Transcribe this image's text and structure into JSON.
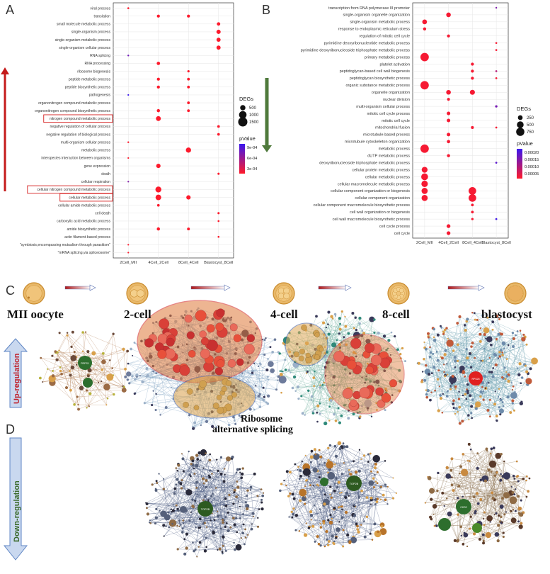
{
  "panels": {
    "A": "A",
    "B": "B",
    "C": "C",
    "D": "D"
  },
  "chart_data": [
    {
      "type": "scatter",
      "id": "A",
      "categories": [
        "2Cell_MII",
        "4Cell_2Cell",
        "8Cell_4Cell",
        "Blastocyst_8Cell"
      ],
      "terms": [
        "viral process",
        "translation",
        "small molecule metabolic process",
        "single-organism process",
        "single-organism metabolic process",
        "single-organism cellular process",
        "RNA splicing",
        "RNA processing",
        "ribosome biogenesis",
        "peptide metabolic process",
        "peptide biosynthetic process",
        "pathogenesis",
        "organonitrogen compound metabolic process",
        "organonitrogen compound biosynthetic process",
        "nitrogen compound metabolic process",
        "negative regulation of cellular process",
        "negative regulation of biological process",
        "multi-organism cellular process",
        "metabolic process",
        "interspecies interaction between organisms",
        "gene expression",
        "death",
        "cellular respiration",
        "cellular nitrogen compound metabolic process",
        "cellular metabolic process",
        "cellular amide metabolic process",
        "cell death",
        "carboxylic acid metabolic process",
        "amide biosynthetic process",
        "actin filament-based process",
        "\"symbiosis,encompassing mutualism through parasitism\"",
        "\"mRNA splicing,via spliceosome\""
      ],
      "boxed_terms": [
        "nitrogen compound metabolic process",
        "cellular nitrogen compound metabolic process",
        "cellular metabolic process"
      ],
      "points": [
        [
          0,
          0,
          60,
          1e-05
        ],
        [
          1,
          1,
          160,
          1e-05
        ],
        [
          1,
          2,
          160,
          1e-05
        ],
        [
          2,
          3,
          210,
          1e-05
        ],
        [
          3,
          3,
          320,
          1e-05
        ],
        [
          4,
          3,
          300,
          1e-05
        ],
        [
          5,
          3,
          300,
          1e-05
        ],
        [
          6,
          0,
          50,
          0.0008
        ],
        [
          7,
          1,
          200,
          1e-05
        ],
        [
          8,
          2,
          90,
          1e-05
        ],
        [
          9,
          1,
          160,
          1e-05
        ],
        [
          9,
          2,
          130,
          1e-05
        ],
        [
          10,
          1,
          160,
          1e-05
        ],
        [
          10,
          2,
          130,
          1e-05
        ],
        [
          11,
          0,
          40,
          0.0011
        ],
        [
          12,
          2,
          130,
          1e-05
        ],
        [
          13,
          1,
          180,
          1e-05
        ],
        [
          13,
          2,
          130,
          1e-05
        ],
        [
          14,
          1,
          420,
          1e-05
        ],
        [
          15,
          3,
          120,
          1e-05
        ],
        [
          16,
          3,
          120,
          1e-05
        ],
        [
          17,
          0,
          50,
          1e-05
        ],
        [
          18,
          2,
          480,
          1e-05
        ],
        [
          19,
          0,
          40,
          1e-05
        ],
        [
          20,
          1,
          330,
          1e-05
        ],
        [
          21,
          3,
          80,
          1e-05
        ],
        [
          22,
          0,
          40,
          0.0007
        ],
        [
          23,
          1,
          620,
          1e-05
        ],
        [
          24,
          1,
          560,
          1e-05
        ],
        [
          24,
          2,
          330,
          1e-05
        ],
        [
          25,
          1,
          120,
          1e-05
        ],
        [
          26,
          3,
          80,
          1e-05
        ],
        [
          27,
          3,
          60,
          1e-05
        ],
        [
          28,
          1,
          180,
          1e-05
        ],
        [
          28,
          2,
          140,
          1e-05
        ],
        [
          29,
          3,
          60,
          1e-05
        ],
        [
          30,
          0,
          40,
          1e-05
        ],
        [
          31,
          0,
          40,
          1e-05
        ]
      ],
      "legend": {
        "size_title": "DEGs",
        "sizes": [
          500,
          1000,
          1500
        ],
        "size_labels": [
          "500",
          "1000",
          "1500"
        ],
        "color_title": "pValue",
        "color_ticks": [
          "9e-04",
          "6e-04",
          "3e-04"
        ],
        "color_max": 0.0011,
        "color_min": 0.0,
        "color_low": "#ff1a2a",
        "color_high": "#3a18f0"
      },
      "arrow_color": "#c41a1a"
    },
    {
      "type": "scatter",
      "id": "B",
      "categories": [
        "2Cell_MII",
        "4Cell_2Cell",
        "8Cell_4Cell",
        "Blastocyst_8Cell"
      ],
      "terms": [
        "transcription from RNA polymerase III promoter",
        "single-organism organelle organization",
        "single-organism metabolic process",
        "response to endoplasmic reticulum stress",
        "regulation of mitotic cell cycle",
        "pyrimidine deoxyribonucleotide metabolic process",
        "pyrimidine deoxyribonucleoside triphosphate metabolic process",
        "primary metabolic process",
        "platelet activation",
        "peptidoglycan-based cell wall biogenesis",
        "peptidoglycan biosynthetic process",
        "organic substance metabolic process",
        "organelle organization",
        "nuclear division",
        "multi-organism cellular process",
        "mitotic cell cycle process",
        "mitotic cell cycle",
        "mitochondrial fusion",
        "microtubule-based process",
        "microtubule cytoskeleton organization",
        "metabolic process",
        "dUTP metabolic process",
        "deoxyribonucleoside triphosphate metabolic process",
        "cellular protein metabolic process",
        "cellular metabolic process",
        "cellular macromolecule metabolic process",
        "cellular component organization or biogenesis",
        "cellular component organization",
        "cellular component macromolecule biosynthetic process",
        "cell wall organization or biogenesis",
        "cell wall macromolecule biosynthetic process",
        "cell cycle process",
        "cell cycle"
      ],
      "points": [
        [
          0,
          3,
          30,
          0.00015
        ],
        [
          1,
          1,
          240,
          1e-05
        ],
        [
          2,
          0,
          250,
          1e-05
        ],
        [
          3,
          0,
          110,
          1e-05
        ],
        [
          4,
          1,
          100,
          1e-05
        ],
        [
          5,
          3,
          40,
          1e-05
        ],
        [
          6,
          3,
          40,
          1e-05
        ],
        [
          7,
          0,
          780,
          1e-05
        ],
        [
          8,
          2,
          100,
          1e-05
        ],
        [
          9,
          2,
          100,
          1e-05
        ],
        [
          9,
          3,
          40,
          9e-05
        ],
        [
          10,
          2,
          100,
          1e-05
        ],
        [
          10,
          3,
          40,
          1e-05
        ],
        [
          11,
          0,
          780,
          1e-05
        ],
        [
          12,
          1,
          240,
          1e-05
        ],
        [
          12,
          2,
          280,
          1e-05
        ],
        [
          13,
          1,
          90,
          1e-05
        ],
        [
          14,
          3,
          60,
          0.00016
        ],
        [
          15,
          1,
          140,
          1e-05
        ],
        [
          16,
          1,
          140,
          1e-05
        ],
        [
          17,
          2,
          90,
          1e-05
        ],
        [
          17,
          3,
          40,
          1e-05
        ],
        [
          18,
          1,
          140,
          1e-05
        ],
        [
          19,
          1,
          120,
          1e-05
        ],
        [
          20,
          0,
          780,
          1e-05
        ],
        [
          21,
          1,
          110,
          1e-05
        ],
        [
          22,
          3,
          40,
          0.00019
        ],
        [
          23,
          0,
          380,
          1e-05
        ],
        [
          24,
          0,
          520,
          1e-05
        ],
        [
          25,
          0,
          460,
          1e-05
        ],
        [
          26,
          0,
          420,
          1e-05
        ],
        [
          26,
          2,
          640,
          1e-05
        ],
        [
          27,
          0,
          420,
          1e-05
        ],
        [
          27,
          2,
          640,
          1e-05
        ],
        [
          28,
          2,
          80,
          1e-05
        ],
        [
          29,
          2,
          80,
          1e-05
        ],
        [
          30,
          2,
          60,
          1e-05
        ],
        [
          30,
          3,
          40,
          0.00022
        ],
        [
          31,
          1,
          160,
          1e-05
        ],
        [
          32,
          1,
          160,
          1e-05
        ]
      ],
      "legend": {
        "size_title": "DEGs",
        "sizes": [
          250,
          500,
          750
        ],
        "size_labels": [
          "250",
          "500",
          "750"
        ],
        "color_title": "pValue",
        "color_ticks": [
          "0.00020",
          "0.00015",
          "0.00010",
          "0.00005"
        ],
        "color_max": 0.00023,
        "color_min": 0.0,
        "color_low": "#ff1a2a",
        "color_high": "#3a18f0"
      },
      "arrow_color": "#4f7a3c"
    }
  ],
  "panel_c": {
    "stages": [
      "MII oocyte",
      "2-cell",
      "4-cell",
      "8-cell",
      "blastocyst"
    ],
    "side_label": "Up-regulation",
    "annotation_line1": "Ribosome",
    "annotation_line2": "alternative splicing",
    "hub_labels": [
      "PRPS1",
      "RPS26"
    ]
  },
  "panel_d": {
    "side_label": "Down-regulation",
    "hub_labels": [
      "TOP2B",
      "TOP2B",
      "CKS2"
    ]
  }
}
